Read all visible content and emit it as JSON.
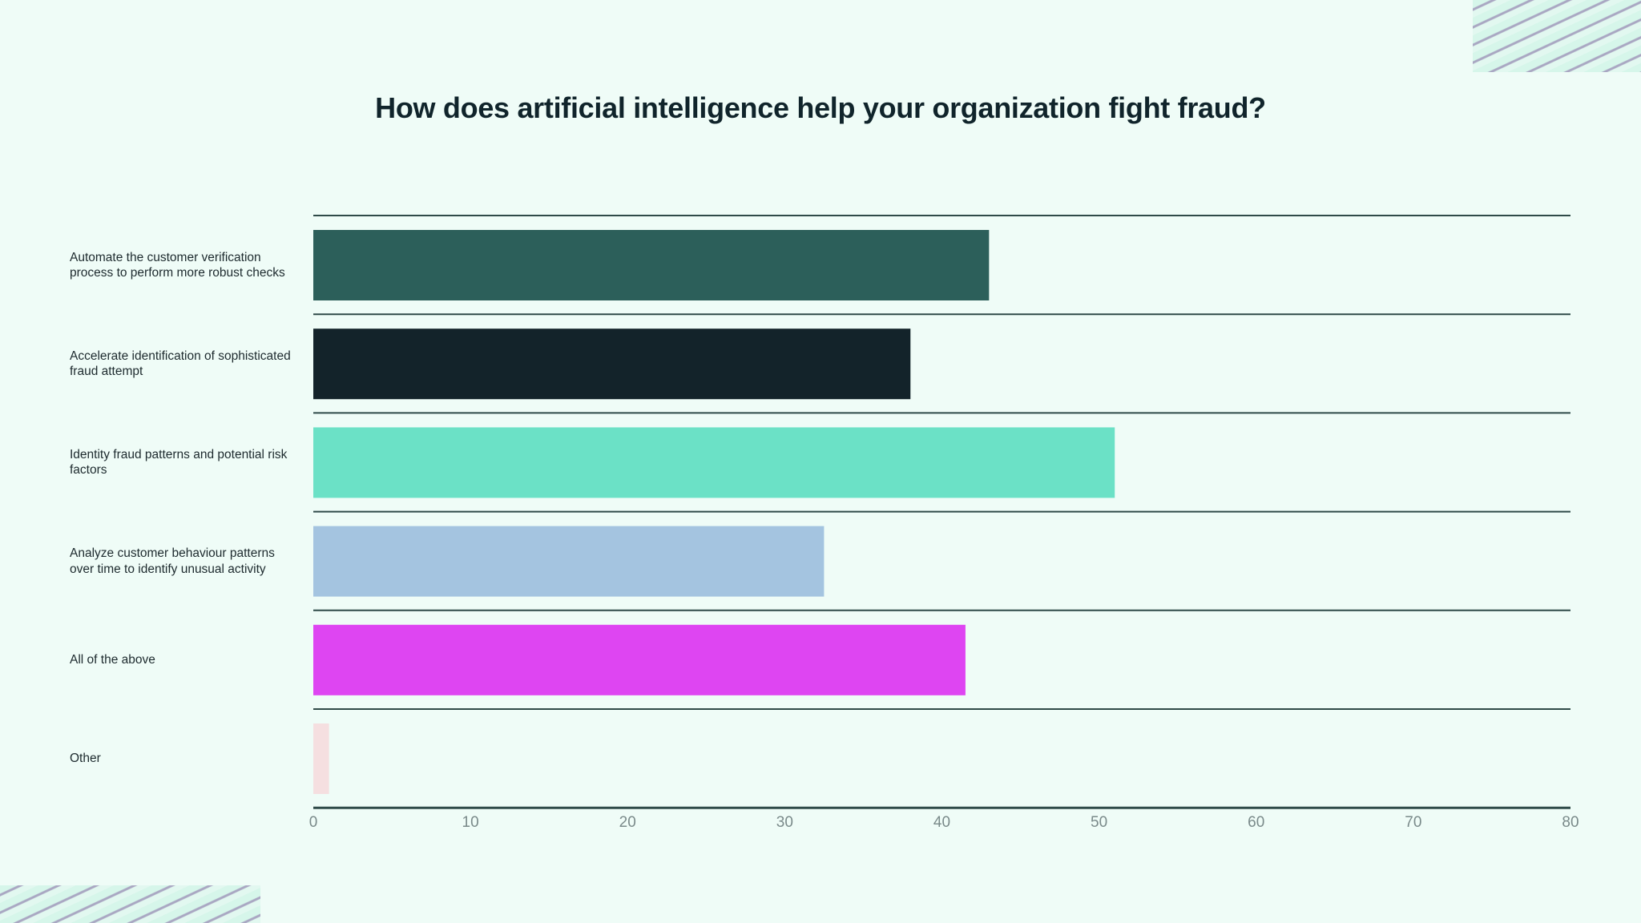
{
  "chart_data": {
    "type": "bar",
    "orientation": "horizontal",
    "title": "How does artificial intelligence help your organization fight fraud?",
    "categories": [
      "Automate the customer verification process to perform more robust checks",
      "Accelerate identification of sophisticated fraud attempt",
      "Identity fraud patterns and potential risk factors",
      "Analyze customer behaviour patterns over time to identify unusual activity",
      "All of the above",
      "Other"
    ],
    "values": [
      43,
      38,
      51,
      32.5,
      41.5,
      1
    ],
    "colors": [
      "#2c5f5a",
      "#13232a",
      "#6be1c6",
      "#a4c4e0",
      "#de45f2",
      "#f5dfe0"
    ],
    "xlim": [
      0,
      80
    ],
    "xticks": [
      "0",
      "10",
      "20",
      "30",
      "40",
      "50",
      "60",
      "70",
      "80"
    ],
    "xlabel": "",
    "ylabel": "",
    "grid": "horizontal row separators",
    "legend": "none"
  }
}
